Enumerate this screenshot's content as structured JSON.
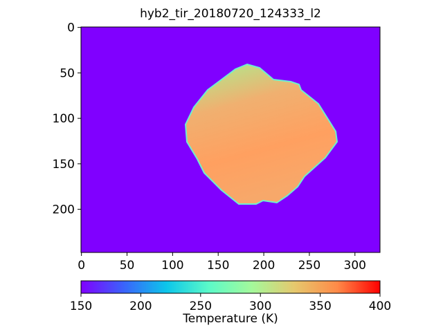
{
  "chart_data": {
    "type": "image",
    "title": "hyb2_tir_20180720_124333_l2",
    "xlim": [
      -0.5,
      327.5
    ],
    "ylim": [
      247.5,
      -0.5
    ],
    "xticks": [
      0,
      50,
      100,
      150,
      200,
      250,
      300
    ],
    "yticks": [
      0,
      50,
      100,
      150,
      200
    ],
    "colorbar": {
      "label": "Temperature (K)",
      "lim": [
        150,
        400
      ],
      "ticks": [
        150,
        200,
        250,
        300,
        350,
        400
      ],
      "colors": [
        "#8000ff",
        "#3a63fb",
        "#0cc6ea",
        "#5cfac8",
        "#a4f99b",
        "#e6c86d",
        "#ff8a48",
        "#ff0000"
      ]
    }
  }
}
